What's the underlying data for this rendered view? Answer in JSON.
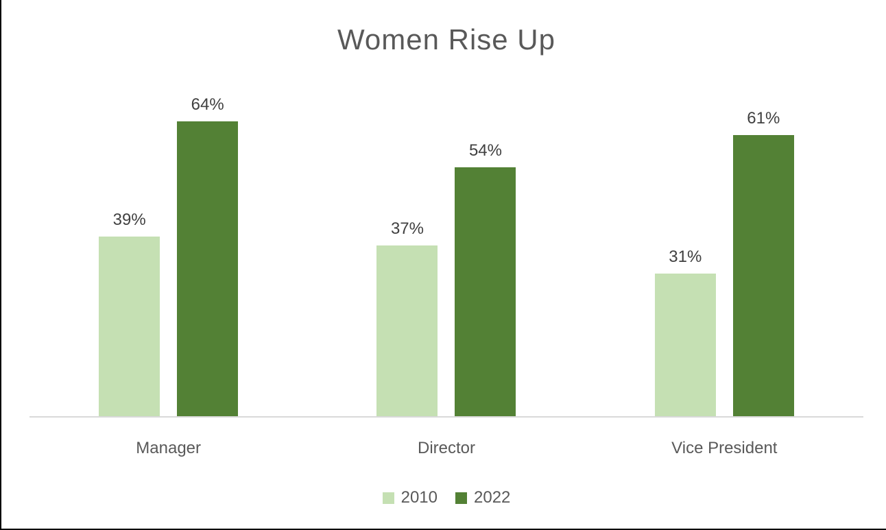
{
  "chart_data": {
    "type": "bar",
    "title": "Women Rise Up",
    "categories": [
      "Manager",
      "Director",
      "Vice President"
    ],
    "series": [
      {
        "name": "2010",
        "color": "#c5e0b3",
        "values": [
          39,
          37,
          31
        ]
      },
      {
        "name": "2022",
        "color": "#538135",
        "values": [
          64,
          54,
          61
        ]
      }
    ],
    "value_unit": "%",
    "data_labels": {
      "2010": [
        "39%",
        "37%",
        "31%"
      ],
      "2022": [
        "64%",
        "54%",
        "61%"
      ]
    },
    "ylim": [
      0,
      70
    ],
    "grid": false,
    "legend_position": "bottom",
    "colors": {
      "axis_line": "#d9d9d9",
      "title_text": "#595959",
      "data_label_text": "#404040",
      "category_text": "#595959",
      "legend_text": "#595959",
      "frame_border": "#000000",
      "background": "#ffffff"
    }
  }
}
